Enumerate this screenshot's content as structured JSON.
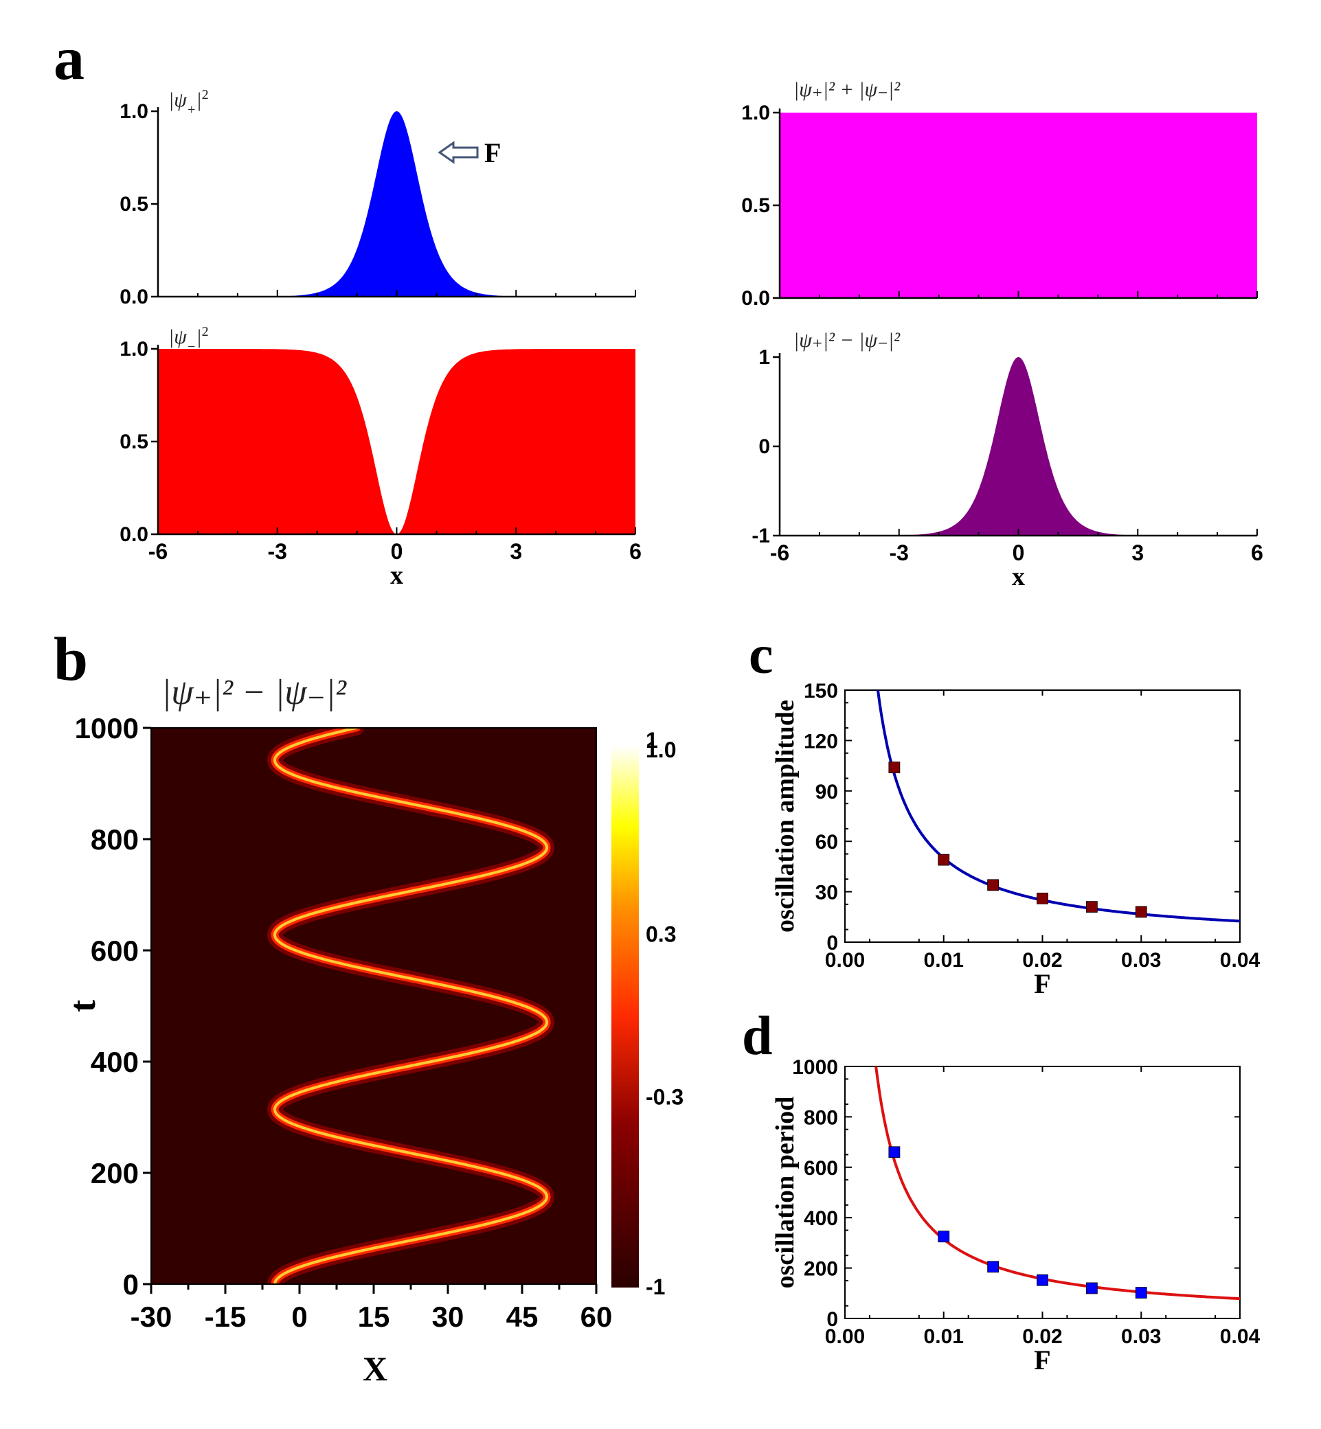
{
  "panel_labels": {
    "a": "a",
    "b": "b",
    "c": "c",
    "d": "d"
  },
  "colors": {
    "blue": "#0000ff",
    "red": "#ff0000",
    "magenta": "#ff00ff",
    "purple": "#800080",
    "fit_blue": "#0000b0",
    "fit_red": "#dd1111",
    "marker_dark": "#800000",
    "marker_blue": "#0000ff"
  },
  "annotation": {
    "arrow_label": "F"
  },
  "chart_data": [
    {
      "id": "a1",
      "type": "area",
      "title": "|ψ₊|²",
      "title_base": "|ψ",
      "title_sub": "+",
      "title_tail": "|",
      "xlim": [
        -6,
        6
      ],
      "ylim": [
        0,
        1
      ],
      "yticks": [
        "0.0",
        "0.5",
        "1.0"
      ],
      "xticks": [],
      "xlabel": "",
      "curve": "sech2",
      "x": [
        -6,
        -3,
        -2,
        -1,
        -0.5,
        0,
        0.5,
        1,
        2,
        3,
        6
      ],
      "y": [
        0.0,
        0.01,
        0.07,
        0.42,
        0.79,
        1.0,
        0.79,
        0.42,
        0.07,
        0.01,
        0.0
      ]
    },
    {
      "id": "a2",
      "type": "area",
      "title": "|ψ₋|²",
      "title_base": "|ψ",
      "title_sub": "−",
      "title_tail": "|",
      "xlim": [
        -6,
        6
      ],
      "ylim": [
        0,
        1
      ],
      "yticks": [
        "0.0",
        "0.5",
        "1.0"
      ],
      "xticks": [
        "-6",
        "-3",
        "0",
        "3",
        "6"
      ],
      "xlabel": "x",
      "curve": "tanh2",
      "x": [
        -6,
        -3,
        -2,
        -1,
        -0.5,
        0,
        0.5,
        1,
        2,
        3,
        6
      ],
      "y": [
        1.0,
        0.99,
        0.93,
        0.58,
        0.21,
        0.0,
        0.21,
        0.58,
        0.93,
        0.99,
        1.0
      ]
    },
    {
      "id": "a3",
      "type": "area",
      "title": "|ψ₊|² + |ψ₋|²",
      "xlim": [
        -6,
        6
      ],
      "ylim": [
        0,
        1
      ],
      "yticks": [
        "0.0",
        "0.5",
        "1.0"
      ],
      "xticks": [],
      "xlabel": "",
      "curve": "const",
      "x": [
        -6,
        6
      ],
      "y": [
        1.0,
        1.0
      ]
    },
    {
      "id": "a4",
      "type": "area",
      "title": "|ψ₊|² − |ψ₋|²",
      "xlim": [
        -6,
        6
      ],
      "ylim": [
        -1,
        1
      ],
      "yticks": [
        "-1",
        "0",
        "1"
      ],
      "xticks": [
        "-6",
        "-3",
        "0",
        "3",
        "6"
      ],
      "xlabel": "x",
      "curve": "diff",
      "x": [
        -6,
        -3,
        -1,
        0,
        1,
        3,
        6
      ],
      "y": [
        -1.0,
        -0.98,
        -0.16,
        1.0,
        -0.16,
        -0.98,
        -1.0
      ]
    },
    {
      "id": "b",
      "type": "heatmap",
      "title": "|ψ₊|² − |ψ₋|²",
      "xlabel": "X",
      "ylabel": "t",
      "xlim": [
        -30,
        60
      ],
      "ylim": [
        0,
        1000
      ],
      "xticks": [
        "-30",
        "-15",
        "0",
        "15",
        "30",
        "45",
        "60"
      ],
      "yticks": [
        "0",
        "200",
        "400",
        "600",
        "800",
        "1000"
      ],
      "colorbar": {
        "range": [
          -1,
          1
        ],
        "ticks": [
          "-1",
          "-0.3",
          "0.3",
          "1.0"
        ],
        "extra_tick": "1"
      },
      "trajectory": {
        "center": 22.5,
        "amplitude": 27.5,
        "period": 314,
        "phase_at_t0": -1.5708
      }
    },
    {
      "id": "c",
      "type": "scatter",
      "xlabel": "F",
      "ylabel": "oscillation amplitude",
      "xlim": [
        0,
        0.04
      ],
      "ylim": [
        0,
        150
      ],
      "xticks": [
        "0.00",
        "0.01",
        "0.02",
        "0.03",
        "0.04"
      ],
      "yticks": [
        "0",
        "30",
        "60",
        "90",
        "120",
        "150"
      ],
      "x": [
        0.005,
        0.01,
        0.015,
        0.02,
        0.025,
        0.03
      ],
      "y": [
        104,
        49,
        34,
        26,
        21,
        18
      ],
      "fit": {
        "a": 0.5,
        "b": 0.0
      }
    },
    {
      "id": "d",
      "type": "scatter",
      "xlabel": "F",
      "ylabel": "oscillation period",
      "xlim": [
        0,
        0.04
      ],
      "ylim": [
        0,
        1000
      ],
      "xticks": [
        "0.00",
        "0.01",
        "0.02",
        "0.03",
        "0.04"
      ],
      "yticks": [
        "0",
        "200",
        "400",
        "600",
        "800",
        "1000"
      ],
      "x": [
        0.005,
        0.01,
        0.015,
        0.02,
        0.025,
        0.03
      ],
      "y": [
        660,
        325,
        205,
        152,
        120,
        102
      ],
      "fit": {
        "a": 3.14,
        "b": 0.0
      }
    }
  ]
}
